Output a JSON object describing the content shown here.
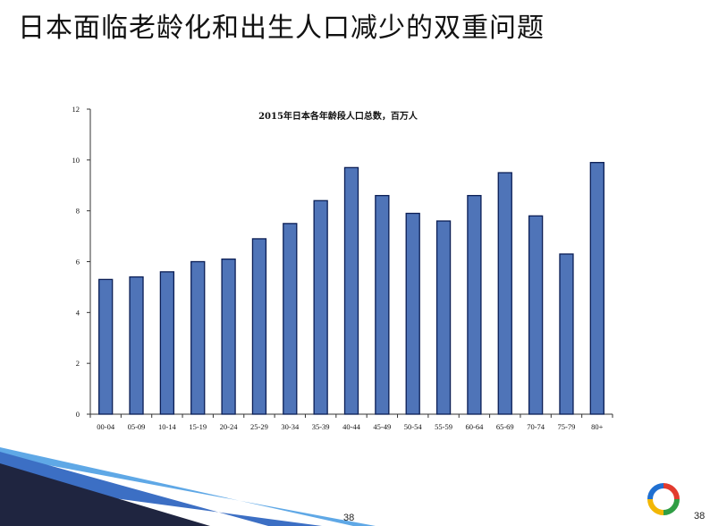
{
  "slide": {
    "title": "日本面临老龄化和出生人口减少的双重问题",
    "page_number_center": "38",
    "page_number_right": "38"
  },
  "colors": {
    "bar_fill": "#4f74b8",
    "bar_stroke": "#0b1e55",
    "decor_dark": "#1f2540",
    "decor_blue": "#3c6fc4",
    "decor_light": "#5fa8e6"
  },
  "icons": {
    "logo": "colorful-ring-logo"
  },
  "chart_data": {
    "type": "bar",
    "title": "2015年日本各年龄段人口总数，百万人",
    "categories": [
      "00-04",
      "05-09",
      "10-14",
      "15-19",
      "20-24",
      "25-29",
      "30-34",
      "35-39",
      "40-44",
      "45-49",
      "50-54",
      "55-59",
      "60-64",
      "65-69",
      "70-74",
      "75-79",
      "80+"
    ],
    "values": [
      5.3,
      5.4,
      5.6,
      6.0,
      6.1,
      6.9,
      7.5,
      8.4,
      9.7,
      8.6,
      7.9,
      7.6,
      8.6,
      9.5,
      7.8,
      6.3,
      9.9
    ],
    "ylim": [
      0,
      12
    ],
    "yticks": [
      "0",
      "2",
      "4",
      "6",
      "8",
      "10",
      "12"
    ],
    "grid": false,
    "legend": "none"
  }
}
